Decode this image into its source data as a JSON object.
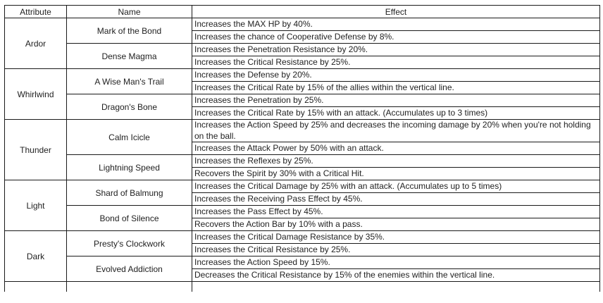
{
  "table": {
    "headers": [
      "Attribute",
      "Name",
      "Effect"
    ],
    "groups": [
      {
        "attribute": "Ardor",
        "skills": [
          {
            "name": "Mark of the Bond",
            "effects": [
              "Increases the MAX HP by 40%.",
              "Increases the chance of Cooperative Defense by 8%."
            ]
          },
          {
            "name": "Dense Magma",
            "effects": [
              "Increases the Penetration Resistance by 20%.",
              "Increases the Critical Resistance by 25%."
            ]
          }
        ]
      },
      {
        "attribute": "Whirlwind",
        "skills": [
          {
            "name": "A Wise Man's Trail",
            "effects": [
              "Increases the Defense by 20%.",
              "Increases the Critical Rate by 15% of the allies within the vertical line."
            ]
          },
          {
            "name": "Dragon's Bone",
            "effects": [
              "Increases the Penetration by 25%.",
              "Increases the Critical Rate by 15% with an attack. (Accumulates up to 3 times)"
            ]
          }
        ]
      },
      {
        "attribute": "Thunder",
        "skills": [
          {
            "name": "Calm Icicle",
            "effects": [
              "Increases the Action Speed by 25% and decreases the incoming damage by 20% when you're not holding on the ball.",
              "Increases the Attack Power by 50% with an attack."
            ]
          },
          {
            "name": "Lightning Speed",
            "effects": [
              "Increases the Reflexes by 25%.",
              "Recovers the Spirit by 30% with a Critical Hit."
            ]
          }
        ]
      },
      {
        "attribute": "Light",
        "skills": [
          {
            "name": "Shard of Balmung",
            "effects": [
              "Increases the Critical Damage by 25% with an attack. (Accumulates up to 5 times)",
              "Increases the Receiving Pass Effect by 45%."
            ]
          },
          {
            "name": "Bond of Silence",
            "effects": [
              "Increases the Pass Effect by 45%.",
              "Recovers the Action Bar by 10% with a pass."
            ]
          }
        ]
      },
      {
        "attribute": "Dark",
        "skills": [
          {
            "name": "Presty's Clockwork",
            "effects": [
              "Increases the Critical Damage Resistance by 35%.",
              "Increases the Critical Resistance by 25%."
            ]
          },
          {
            "name": "Evolved Addiction",
            "effects": [
              "Increases the Action Speed by 15%.",
              "Decreases the Critical Resistance by 15% of the enemies within the vertical line."
            ]
          }
        ]
      }
    ]
  },
  "colors": {
    "background": "#ffffff",
    "border": "#1a1a1a",
    "text": "#1f1f1f"
  }
}
